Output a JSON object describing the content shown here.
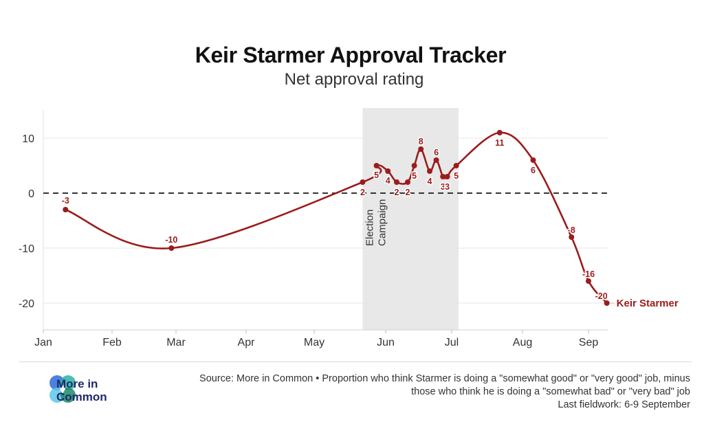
{
  "title": "Keir Starmer Approval Tracker",
  "subtitle": "Net approval rating",
  "chart_data": {
    "type": "line",
    "title": "Keir Starmer Approval Tracker",
    "subtitle": "Net approval rating",
    "xlabel": "",
    "ylabel": "",
    "x_ticks": [
      "Jan",
      "Feb",
      "Mar",
      "Apr",
      "May",
      "Jun",
      "Jul",
      "Aug",
      "Sep"
    ],
    "y_ticks": [
      10,
      0,
      -10,
      -20
    ],
    "ylim": [
      -25,
      15
    ],
    "zero_line": "dashed",
    "grid": "horizontal",
    "shaded_period": {
      "label_line1": "Election",
      "label_line2": "Campaign",
      "start": "May 22",
      "end": "Jul 4"
    },
    "series": [
      {
        "name": "Keir Starmer",
        "color": "#9b1c1c",
        "points": [
          {
            "date": "Jan 11",
            "value": -3,
            "label": "-3"
          },
          {
            "date": "Feb 27",
            "value": -10,
            "label": "-10"
          },
          {
            "date": "May 22",
            "value": 2,
            "label": "2"
          },
          {
            "date": "May 28",
            "value": 5,
            "label": "5"
          },
          {
            "date": "Jun 2",
            "value": 4,
            "label": "4"
          },
          {
            "date": "Jun 6",
            "value": 2,
            "label": "2"
          },
          {
            "date": "Jun 11",
            "value": 2,
            "label": "2"
          },
          {
            "date": "Jun 14",
            "value": 5,
            "label": "5"
          },
          {
            "date": "Jun 17",
            "value": 8,
            "label": "8"
          },
          {
            "date": "Jun 21",
            "value": 4,
            "label": "4"
          },
          {
            "date": "Jun 24",
            "value": 6,
            "label": "6"
          },
          {
            "date": "Jun 27",
            "value": 3,
            "label": "3"
          },
          {
            "date": "Jun 29",
            "value": 3,
            "label": "3"
          },
          {
            "date": "Jul 3",
            "value": 5,
            "label": "5"
          },
          {
            "date": "Jul 22",
            "value": 11,
            "label": "11"
          },
          {
            "date": "Aug 6",
            "value": 6,
            "label": "6"
          },
          {
            "date": "Aug 24",
            "value": -8,
            "label": "-8"
          },
          {
            "date": "Sep 1",
            "value": -16,
            "label": "-16"
          },
          {
            "date": "Sep 9",
            "value": -20,
            "label": "-20"
          }
        ]
      }
    ]
  },
  "footer": {
    "source_line1": "Source: More in Common • Proportion who think Starmer is doing a \"somewhat good\" or \"very good\" job, minus",
    "source_line2": "those who think he is doing a \"somewhat bad\" or \"very bad\" job",
    "fieldwork": "Last fieldwork: 6-9 September"
  },
  "logo": {
    "line1": "More in",
    "line2": "Common",
    "color": "#1d2a6b",
    "icon_colors": [
      "#2f6bd6",
      "#2bb3a6",
      "#5cc8e8",
      "#1f8a6b"
    ]
  },
  "colors": {
    "series": "#9b1c1c",
    "shade": "#e8e8e8",
    "grid": "#e6e6e6",
    "zero_line": "#333333"
  }
}
